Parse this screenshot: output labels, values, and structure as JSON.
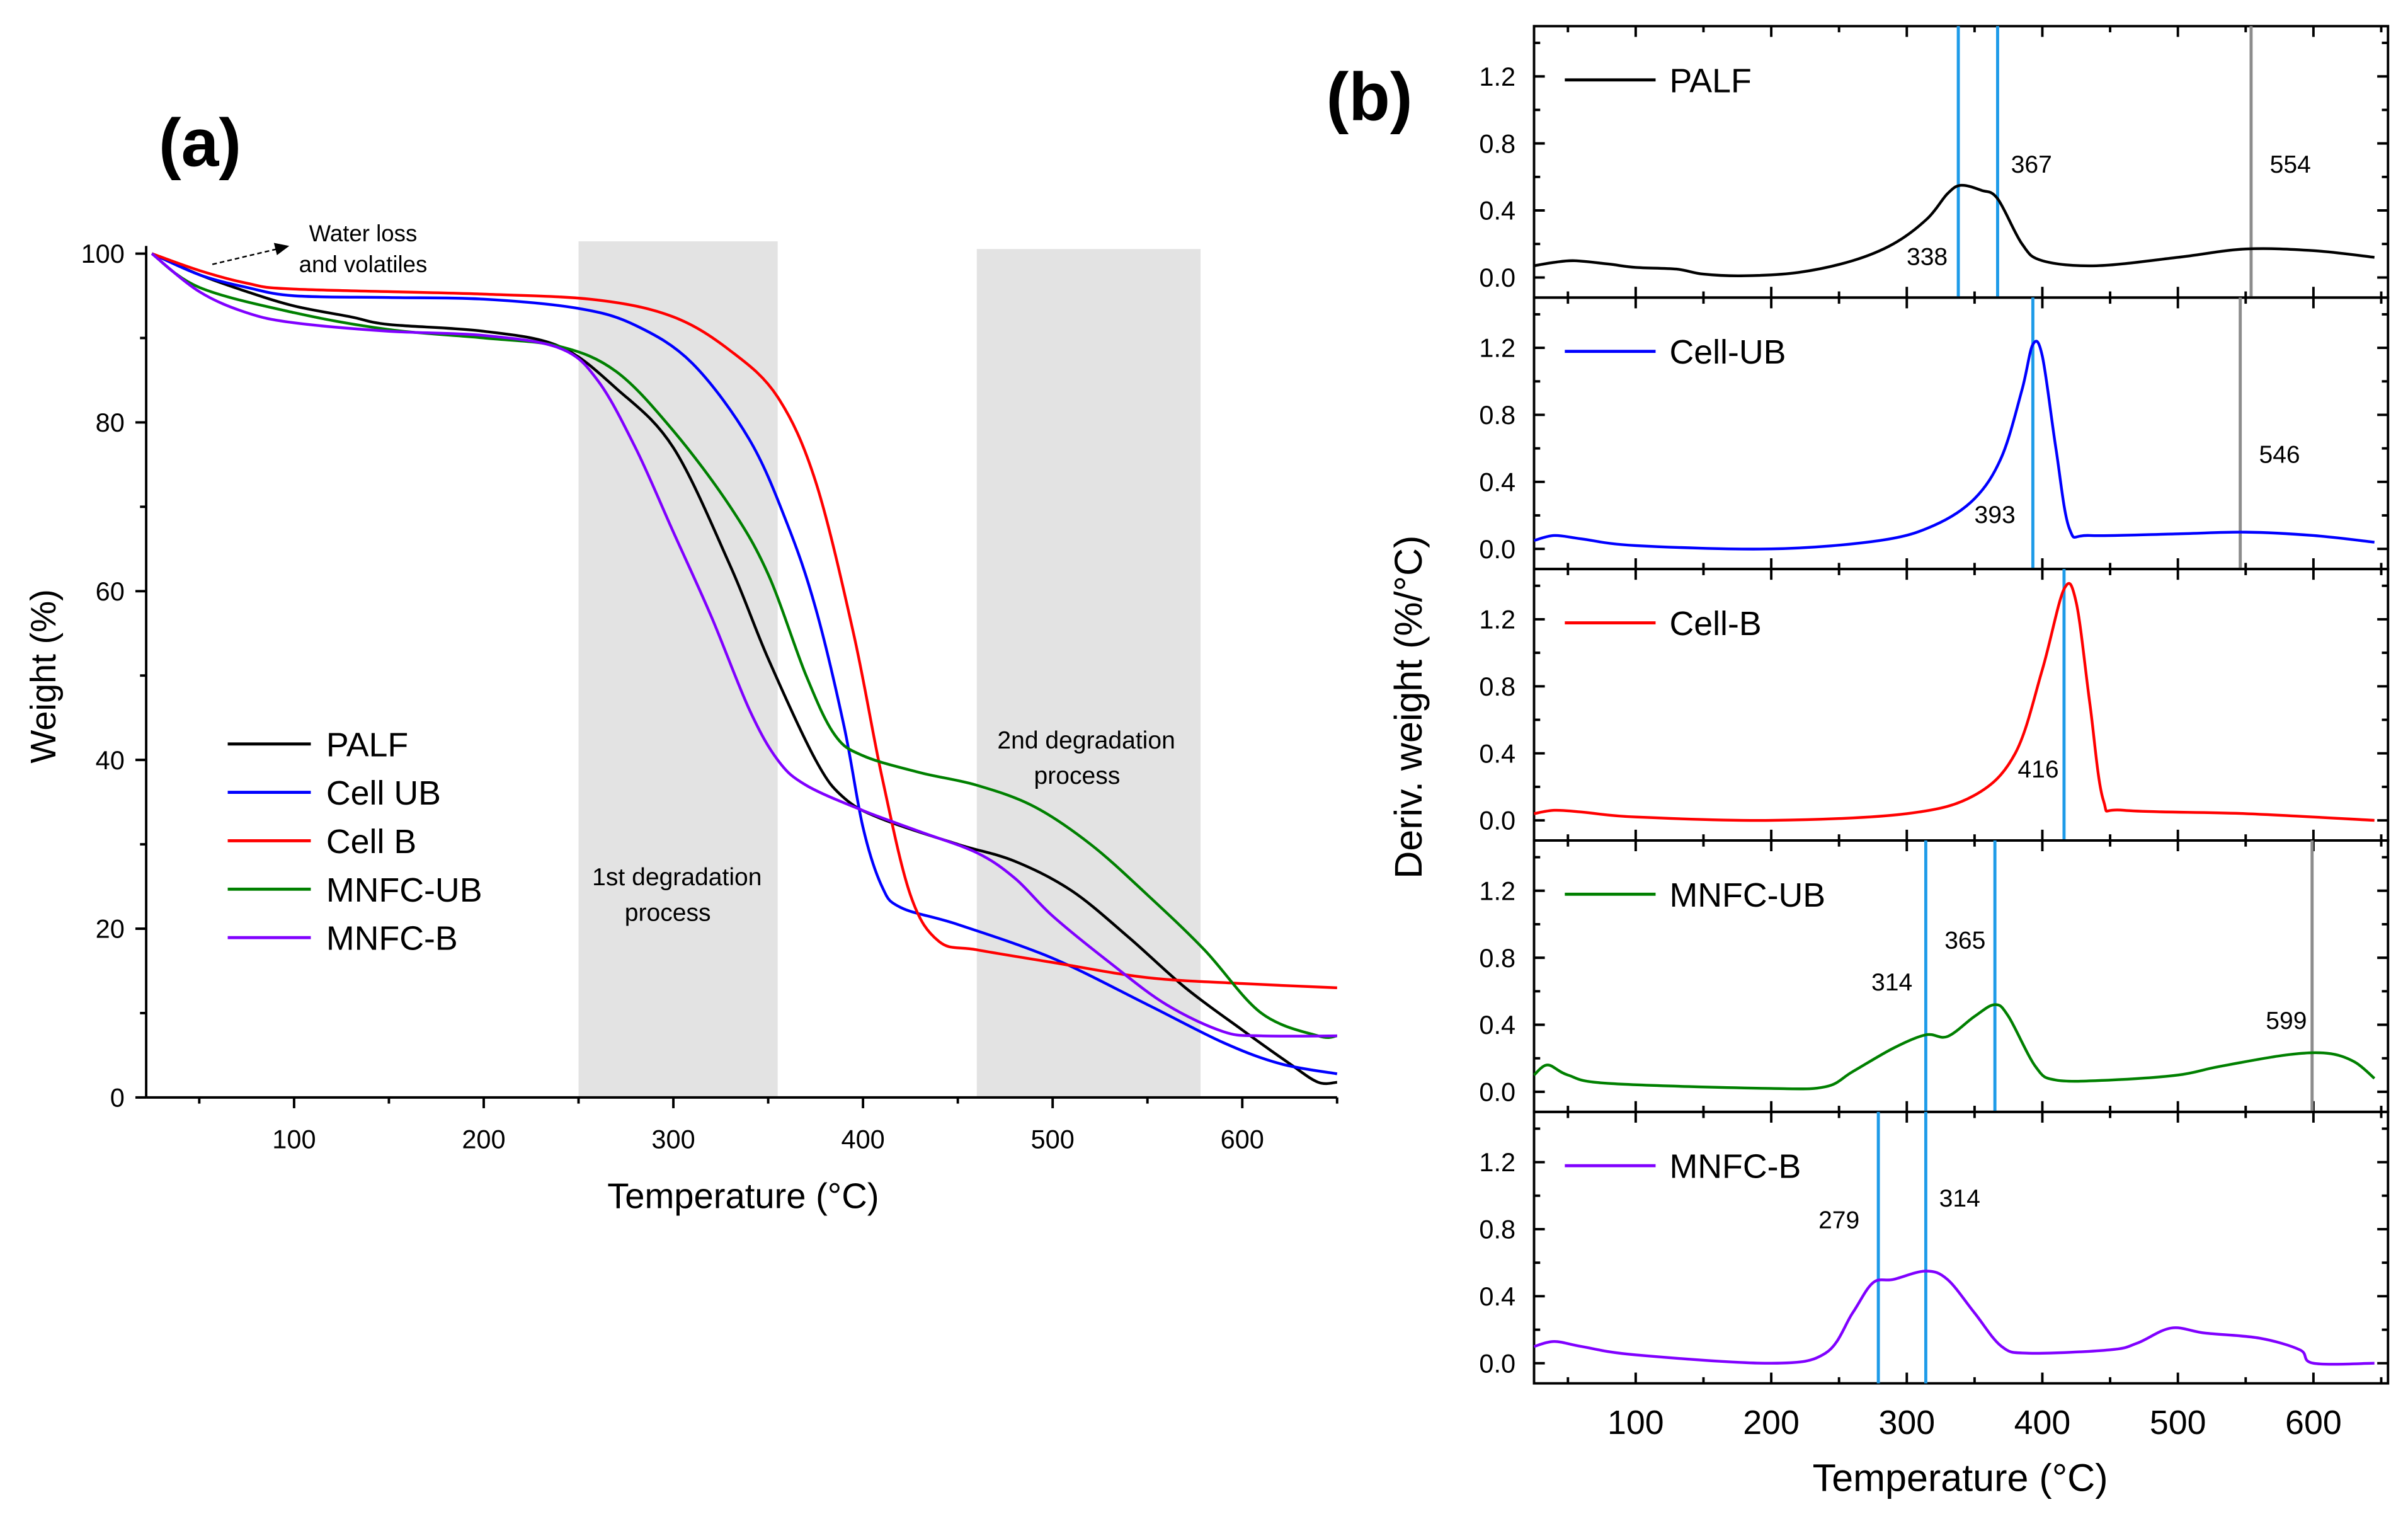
{
  "chart_data": [
    {
      "panel_label": "(a)",
      "type": "line",
      "xlabel": "Temperature (°C)",
      "ylabel": "Weight (%)",
      "xlim": [
        22,
        650
      ],
      "ylim": [
        0,
        100
      ],
      "xticks": [
        100,
        200,
        300,
        400,
        500,
        600
      ],
      "yticks": [
        0,
        20,
        40,
        60,
        80,
        100
      ],
      "grid": false,
      "legend_placement": "center-left",
      "shaded_regions": [
        {
          "range": [
            250,
            355
          ],
          "label_lines": [
            "1st degradation",
            "process"
          ]
        },
        {
          "range": [
            460,
            578
          ],
          "label_lines": [
            "2nd degradation",
            "process"
          ]
        }
      ],
      "annotation": {
        "lines": [
          "Water loss",
          "and volatiles"
        ]
      },
      "series": [
        {
          "name": "PALF",
          "color": "#000000",
          "points": [
            [
              25,
              100
            ],
            [
              50,
              97.5
            ],
            [
              75,
              95.5
            ],
            [
              100,
              93.8
            ],
            [
              130,
              92.5
            ],
            [
              150,
              91.6
            ],
            [
              200,
              90.8
            ],
            [
              240,
              89
            ],
            [
              270,
              84
            ],
            [
              300,
              77
            ],
            [
              330,
              63
            ],
            [
              350,
              52
            ],
            [
              375,
              40
            ],
            [
              390,
              35.5
            ],
            [
              410,
              33
            ],
            [
              450,
              30
            ],
            [
              480,
              28
            ],
            [
              510,
              24.5
            ],
            [
              540,
              19
            ],
            [
              570,
              13
            ],
            [
              600,
              8
            ],
            [
              625,
              4
            ],
            [
              640,
              1.8
            ],
            [
              650,
              1.8
            ]
          ]
        },
        {
          "name": "Cell UB",
          "color": "#0000FF",
          "points": [
            [
              25,
              100
            ],
            [
              50,
              97.5
            ],
            [
              75,
              96
            ],
            [
              100,
              95
            ],
            [
              150,
              94.8
            ],
            [
              200,
              94.6
            ],
            [
              250,
              93.5
            ],
            [
              280,
              91.5
            ],
            [
              310,
              87
            ],
            [
              340,
              78
            ],
            [
              360,
              68
            ],
            [
              375,
              58
            ],
            [
              390,
              44
            ],
            [
              400,
              32
            ],
            [
              410,
              25
            ],
            [
              420,
              22.5
            ],
            [
              450,
              20.5
            ],
            [
              500,
              16.5
            ],
            [
              550,
              11
            ],
            [
              590,
              6.5
            ],
            [
              620,
              4
            ],
            [
              650,
              2.8
            ]
          ]
        },
        {
          "name": "Cell B",
          "color": "#FF0000",
          "points": [
            [
              25,
              100
            ],
            [
              50,
              98
            ],
            [
              75,
              96.5
            ],
            [
              100,
              95.8
            ],
            [
              200,
              95.2
            ],
            [
              260,
              94.5
            ],
            [
              300,
              92.5
            ],
            [
              330,
              88.5
            ],
            [
              355,
              83
            ],
            [
              375,
              73
            ],
            [
              395,
              55
            ],
            [
              410,
              38
            ],
            [
              425,
              24
            ],
            [
              440,
              18.5
            ],
            [
              460,
              17.5
            ],
            [
              500,
              16
            ],
            [
              550,
              14.2
            ],
            [
              600,
              13.5
            ],
            [
              650,
              13
            ]
          ]
        },
        {
          "name": "MNFC-UB",
          "color": "#008000",
          "points": [
            [
              25,
              100
            ],
            [
              50,
              96
            ],
            [
              100,
              93
            ],
            [
              150,
              91
            ],
            [
              200,
              90
            ],
            [
              240,
              89
            ],
            [
              270,
              86
            ],
            [
              300,
              79
            ],
            [
              330,
              70
            ],
            [
              350,
              62
            ],
            [
              370,
              50
            ],
            [
              385,
              43
            ],
            [
              400,
              40.5
            ],
            [
              430,
              38.5
            ],
            [
              460,
              37
            ],
            [
              490,
              34.5
            ],
            [
              520,
              30
            ],
            [
              550,
              24
            ],
            [
              580,
              17.5
            ],
            [
              610,
              10
            ],
            [
              640,
              7.3
            ],
            [
              650,
              7.3
            ]
          ]
        },
        {
          "name": "MNFC-B",
          "color": "#8000FF",
          "points": [
            [
              25,
              100
            ],
            [
              50,
              95.5
            ],
            [
              75,
              93
            ],
            [
              100,
              91.8
            ],
            [
              150,
              90.8
            ],
            [
              200,
              90.3
            ],
            [
              240,
              88.8
            ],
            [
              260,
              85
            ],
            [
              280,
              77
            ],
            [
              300,
              67
            ],
            [
              320,
              57
            ],
            [
              340,
              46
            ],
            [
              355,
              40
            ],
            [
              370,
              37
            ],
            [
              400,
              34
            ],
            [
              430,
              31.5
            ],
            [
              460,
              29
            ],
            [
              480,
              26
            ],
            [
              500,
              21.5
            ],
            [
              530,
              16
            ],
            [
              560,
              11
            ],
            [
              590,
              7.8
            ],
            [
              610,
              7.3
            ],
            [
              650,
              7.3
            ]
          ]
        }
      ]
    },
    {
      "panel_label": "(b)",
      "type": "line",
      "xlabel": "Temperature (°C)",
      "ylabel": "Deriv. weight (%/°C)",
      "xlim": [
        25,
        655
      ],
      "ylim": [
        -0.12,
        1.5
      ],
      "xticks": [
        100,
        200,
        300,
        400,
        500,
        600
      ],
      "yticks": [
        "0.0",
        "0.4",
        "0.8",
        "1.2"
      ],
      "grid": false,
      "legend_placement": "top-left of each subpanel",
      "marker_colors": {
        "peak": "#1E9BE8",
        "secondary": "#8C8C8C"
      },
      "subplots": [
        {
          "name": "PALF",
          "color": "#000000",
          "points": [
            [
              25,
              0.07
            ],
            [
              40,
              0.09
            ],
            [
              55,
              0.1
            ],
            [
              80,
              0.08
            ],
            [
              100,
              0.06
            ],
            [
              130,
              0.05
            ],
            [
              150,
              0.02
            ],
            [
              180,
              0.01
            ],
            [
              220,
              0.03
            ],
            [
              260,
              0.1
            ],
            [
              290,
              0.2
            ],
            [
              315,
              0.35
            ],
            [
              330,
              0.5
            ],
            [
              340,
              0.55
            ],
            [
              355,
              0.52
            ],
            [
              367,
              0.47
            ],
            [
              385,
              0.2
            ],
            [
              400,
              0.1
            ],
            [
              440,
              0.07
            ],
            [
              500,
              0.12
            ],
            [
              550,
              0.17
            ],
            [
              600,
              0.16
            ],
            [
              645,
              0.12
            ]
          ],
          "markers": [
            {
              "t": 338,
              "kind": "peak",
              "label": "338",
              "label_t": 315,
              "label_y": 0.13
            },
            {
              "t": 367,
              "kind": "peak",
              "label": "367",
              "label_t": 392,
              "label_y": 0.68
            },
            {
              "t": 554,
              "kind": "secondary",
              "label": "554",
              "label_t": 583,
              "label_y": 0.68
            }
          ]
        },
        {
          "name": "Cell-UB",
          "color": "#0000FF",
          "points": [
            [
              25,
              0.05
            ],
            [
              40,
              0.08
            ],
            [
              60,
              0.06
            ],
            [
              100,
              0.02
            ],
            [
              200,
              0.0
            ],
            [
              280,
              0.05
            ],
            [
              320,
              0.14
            ],
            [
              350,
              0.3
            ],
            [
              370,
              0.55
            ],
            [
              385,
              0.95
            ],
            [
              393,
              1.22
            ],
            [
              400,
              1.15
            ],
            [
              410,
              0.6
            ],
            [
              420,
              0.12
            ],
            [
              435,
              0.08
            ],
            [
              500,
              0.09
            ],
            [
              550,
              0.1
            ],
            [
              600,
              0.08
            ],
            [
              645,
              0.04
            ]
          ],
          "markers": [
            {
              "t": 393,
              "kind": "peak",
              "label": "393",
              "label_t": 365,
              "label_y": 0.21
            },
            {
              "t": 546,
              "kind": "secondary",
              "label": "546",
              "label_t": 575,
              "label_y": 0.57
            }
          ]
        },
        {
          "name": "Cell-B",
          "color": "#FF0000",
          "points": [
            [
              25,
              0.04
            ],
            [
              40,
              0.06
            ],
            [
              60,
              0.05
            ],
            [
              100,
              0.02
            ],
            [
              200,
              0.0
            ],
            [
              300,
              0.04
            ],
            [
              350,
              0.15
            ],
            [
              380,
              0.4
            ],
            [
              400,
              0.9
            ],
            [
              416,
              1.38
            ],
            [
              425,
              1.3
            ],
            [
              435,
              0.7
            ],
            [
              445,
              0.12
            ],
            [
              460,
              0.06
            ],
            [
              550,
              0.04
            ],
            [
              645,
              0.0
            ]
          ],
          "markers": [
            {
              "t": 416,
              "kind": "peak",
              "label": "416",
              "label_t": 397,
              "label_y": 0.31
            }
          ]
        },
        {
          "name": "MNFC-UB",
          "color": "#008000",
          "points": [
            [
              25,
              0.1
            ],
            [
              35,
              0.16
            ],
            [
              50,
              0.1
            ],
            [
              80,
              0.05
            ],
            [
              200,
              0.02
            ],
            [
              240,
              0.03
            ],
            [
              260,
              0.12
            ],
            [
              290,
              0.26
            ],
            [
              314,
              0.34
            ],
            [
              330,
              0.33
            ],
            [
              350,
              0.45
            ],
            [
              365,
              0.52
            ],
            [
              375,
              0.45
            ],
            [
              395,
              0.15
            ],
            [
              410,
              0.07
            ],
            [
              450,
              0.07
            ],
            [
              500,
              0.1
            ],
            [
              530,
              0.15
            ],
            [
              580,
              0.22
            ],
            [
              610,
              0.23
            ],
            [
              630,
              0.18
            ],
            [
              645,
              0.08
            ]
          ],
          "markers": [
            {
              "t": 314,
              "kind": "peak",
              "label": "314",
              "label_t": 289,
              "label_y": 0.66
            },
            {
              "t": 365,
              "kind": "peak",
              "label": "365",
              "label_t": 343,
              "label_y": 0.91
            },
            {
              "t": 599,
              "kind": "secondary",
              "label": "599",
              "label_t": 580,
              "label_y": 0.43
            }
          ]
        },
        {
          "name": "MNFC-B",
          "color": "#8000FF",
          "points": [
            [
              25,
              0.1
            ],
            [
              40,
              0.13
            ],
            [
              60,
              0.1
            ],
            [
              100,
              0.05
            ],
            [
              200,
              0.0
            ],
            [
              240,
              0.06
            ],
            [
              260,
              0.3
            ],
            [
              275,
              0.48
            ],
            [
              290,
              0.5
            ],
            [
              314,
              0.55
            ],
            [
              330,
              0.5
            ],
            [
              350,
              0.3
            ],
            [
              370,
              0.1
            ],
            [
              390,
              0.06
            ],
            [
              450,
              0.08
            ],
            [
              470,
              0.12
            ],
            [
              495,
              0.21
            ],
            [
              520,
              0.18
            ],
            [
              560,
              0.15
            ],
            [
              590,
              0.08
            ],
            [
              600,
              0.0
            ],
            [
              645,
              0.0
            ]
          ],
          "markers": [
            {
              "t": 279,
              "kind": "peak",
              "label": "279",
              "label_t": 250,
              "label_y": 0.86
            },
            {
              "t": 314,
              "kind": "peak",
              "label": "314",
              "label_t": 339,
              "label_y": 0.99
            }
          ]
        }
      ]
    }
  ]
}
